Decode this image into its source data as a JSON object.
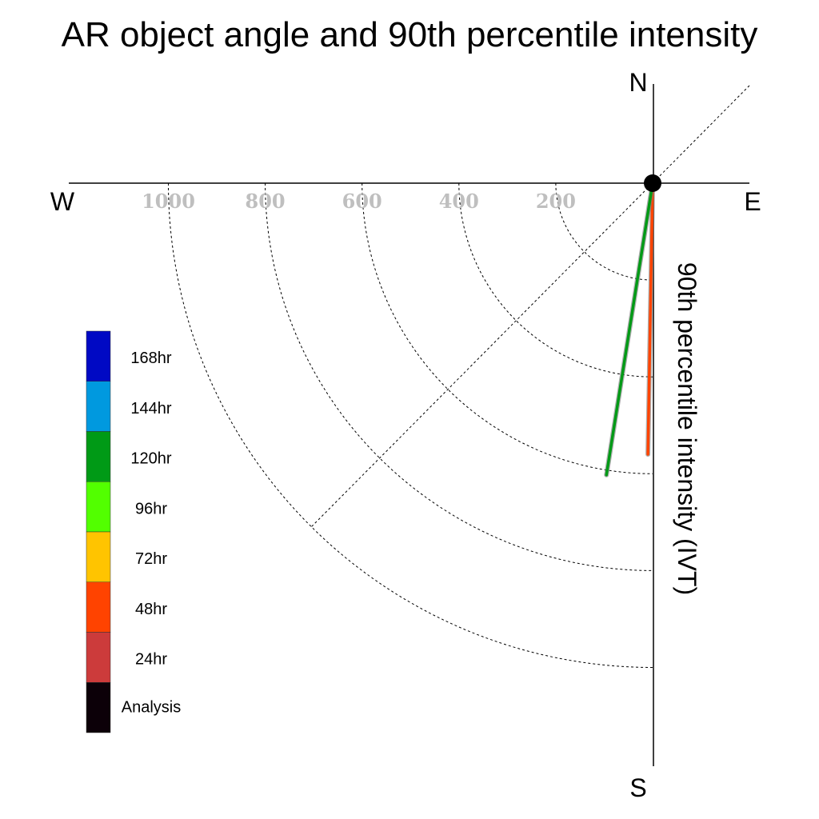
{
  "chart_data": {
    "type": "polar-quadrant",
    "title": "AR object angle and 90th percentile intensity",
    "ylabel": "90th percentile intensity (IVT)",
    "compass": {
      "north": "N",
      "south": "S",
      "east": "E",
      "west": "W"
    },
    "radial_ticks": [
      "200",
      "400",
      "600",
      "800",
      "1000"
    ],
    "radial_tick_values": [
      200,
      400,
      600,
      800,
      1000
    ],
    "rlim": [
      0,
      1200
    ],
    "grid": true,
    "legend_position": "left",
    "legend": [
      {
        "label": "168hr",
        "color": "#0009c4"
      },
      {
        "label": "144hr",
        "color": "#0099df"
      },
      {
        "label": "120hr",
        "color": "#009a16"
      },
      {
        "label": "96hr",
        "color": "#52ff00"
      },
      {
        "label": "72hr",
        "color": "#ffc400"
      },
      {
        "label": "48hr",
        "color": "#ff4300"
      },
      {
        "label": "24hr",
        "color": "#cc3b3b"
      },
      {
        "label": "Analysis",
        "color": "#0c0008"
      }
    ],
    "series": [
      {
        "name": "48hr",
        "color": "#ff4300",
        "angle_deg_west_of_south": 1,
        "intensity": 560
      },
      {
        "name": "120hr",
        "color": "#009a16",
        "angle_deg_west_of_south": 9,
        "intensity": 610
      }
    ],
    "center_marker_color": "#000000"
  }
}
